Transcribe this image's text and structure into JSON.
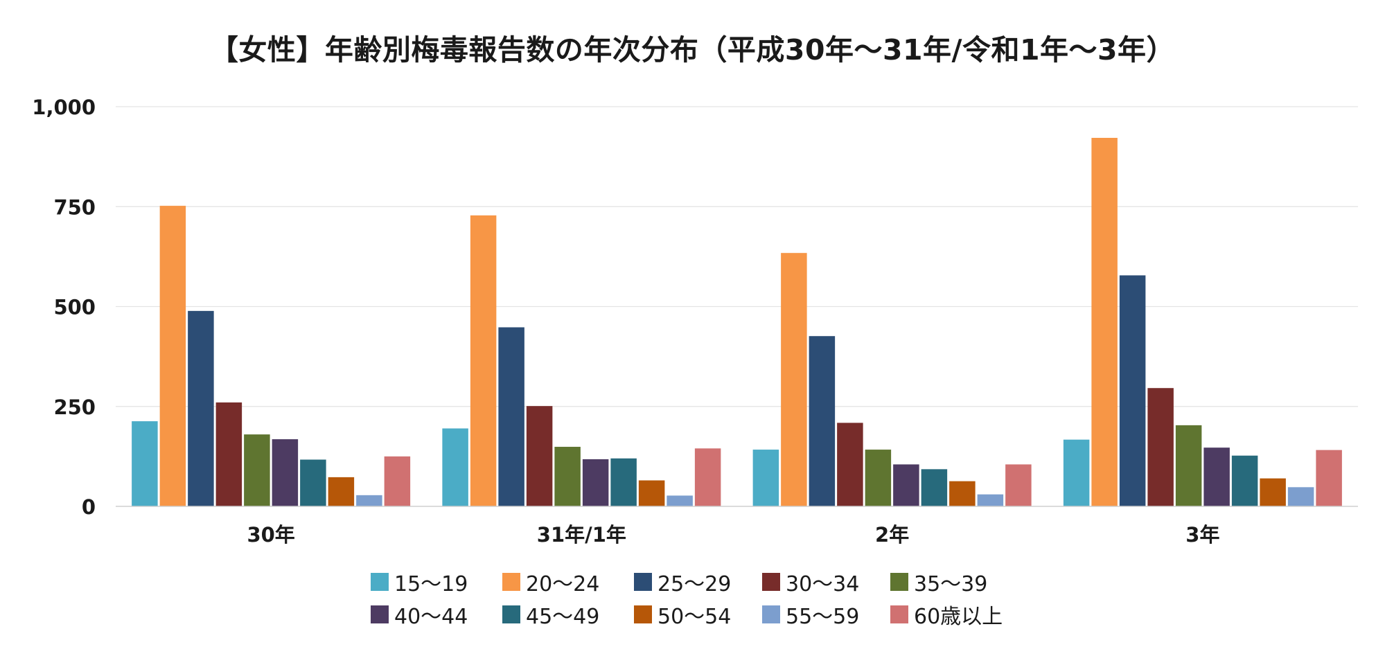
{
  "chart_data": {
    "type": "bar",
    "title": "【女性】年齢別梅毒報告数の年次分布（平成30年～31年/令和1年～3年）",
    "categories": [
      "30年",
      "31年/1年",
      "2年",
      "3年"
    ],
    "ylim": [
      0,
      1000
    ],
    "yticks": [
      0,
      250,
      500,
      750,
      1000
    ],
    "ytick_labels": [
      "0",
      "250",
      "500",
      "750",
      "1,000"
    ],
    "grid": true,
    "legend_position": "bottom",
    "series": [
      {
        "name": "15～19",
        "color": "#4BACC6",
        "values": [
          213,
          195,
          142,
          167
        ]
      },
      {
        "name": "20～24",
        "color": "#F79646",
        "values": [
          752,
          728,
          634,
          922
        ]
      },
      {
        "name": "25～29",
        "color": "#2C4D75",
        "values": [
          489,
          448,
          426,
          578
        ]
      },
      {
        "name": "30～34",
        "color": "#772C2A",
        "values": [
          260,
          251,
          209,
          296
        ]
      },
      {
        "name": "35～39",
        "color": "#5F7530",
        "values": [
          180,
          149,
          142,
          203
        ]
      },
      {
        "name": "40～44",
        "color": "#4D3B62",
        "values": [
          168,
          118,
          105,
          147
        ]
      },
      {
        "name": "45～49",
        "color": "#276A7C",
        "values": [
          117,
          120,
          93,
          127
        ]
      },
      {
        "name": "50～54",
        "color": "#B65708",
        "values": [
          73,
          65,
          63,
          70
        ]
      },
      {
        "name": "55～59",
        "color": "#7C9ECE",
        "values": [
          28,
          27,
          30,
          48
        ]
      },
      {
        "name": "60歳以上",
        "color": "#D07171",
        "values": [
          125,
          145,
          105,
          141
        ]
      }
    ]
  }
}
